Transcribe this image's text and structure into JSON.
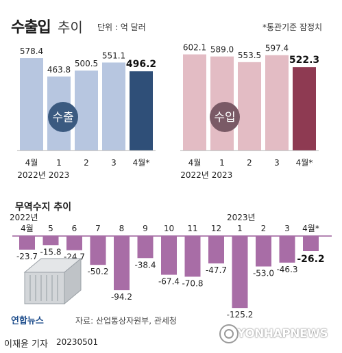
{
  "title": {
    "main": "수출입",
    "sub": "추이"
  },
  "unit": "단위 : 억 달러",
  "note": "*통관기준 잠정치",
  "export_badge": "수출",
  "import_badge": "수입",
  "trade_title": "무역수지 추이",
  "year_labels": {
    "y2022": "2022년",
    "y2023": "2023년"
  },
  "source": "자료: 산업통상자원부, 관세청",
  "brand": "연합뉴스",
  "byline": "이재윤 기자",
  "byline_date": "20230501",
  "watermark": "YONHAPNEWS",
  "colors": {
    "export_bar": "#b7c6e0",
    "export_highlight": "#2f4f78",
    "import_bar": "#e3bcc4",
    "import_highlight": "#8e3a52",
    "trade_bar": "#a86da6",
    "trade_line": "#9a5b98"
  },
  "icons": {
    "container": "shipping-container-icon"
  },
  "chart_data": [
    {
      "type": "bar",
      "name": "수출",
      "categories": [
        "4월 2022년",
        "1 2023",
        "2",
        "3",
        "4월*"
      ],
      "tick_lines": [
        [
          "4월",
          "2022년"
        ],
        [
          "1",
          "2023"
        ],
        [
          "2",
          ""
        ],
        [
          "3",
          ""
        ],
        [
          "4월*",
          ""
        ]
      ],
      "values": [
        578.4,
        463.8,
        500.5,
        551.1,
        496.2
      ],
      "highlight_index": 4
    },
    {
      "type": "bar",
      "name": "수입",
      "categories": [
        "4월 2022년",
        "1 2023",
        "2",
        "3",
        "4월*"
      ],
      "tick_lines": [
        [
          "4월",
          "2022년"
        ],
        [
          "1",
          "2023"
        ],
        [
          "2",
          ""
        ],
        [
          "3",
          ""
        ],
        [
          "4월*",
          ""
        ]
      ],
      "values": [
        602.1,
        589.0,
        553.5,
        597.4,
        522.3
      ],
      "highlight_index": 4
    },
    {
      "type": "bar",
      "title": "무역수지 추이",
      "categories": [
        "4월",
        "5",
        "6",
        "7",
        "8",
        "9",
        "10",
        "11",
        "12",
        "1",
        "2",
        "3",
        "4월*"
      ],
      "values": [
        -23.7,
        -15.8,
        -24.7,
        -50.2,
        -94.2,
        -38.4,
        -67.4,
        -70.8,
        -47.7,
        -125.2,
        -53.0,
        -46.3,
        -26.2
      ],
      "value_labels": [
        "-23.7",
        "-15.8",
        "-24.7",
        "-50.2",
        "-94.2",
        "-38.4",
        "-67.4",
        "-70.8",
        "-47.7",
        "-125.2",
        "-53.0",
        "-46.3",
        "-26.2"
      ],
      "highlight_index": 12
    }
  ]
}
